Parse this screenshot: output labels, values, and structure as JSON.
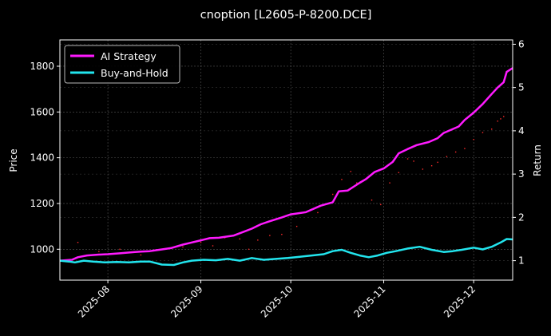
{
  "chart_data": {
    "type": "line",
    "title": "cnoption [L2605-P-8200.DCE]",
    "xlabel": "",
    "ylabel": "Price",
    "y2label": "Return",
    "xlim": [
      "2025-07-16",
      "2025-12-14"
    ],
    "ylim": [
      865,
      1915
    ],
    "y2lim": [
      0.55,
      6.1
    ],
    "x_ticks": [
      "2025-08-01",
      "2025-09-01",
      "2025-10-01",
      "2025-11-01",
      "2025-12-01"
    ],
    "x_tick_labels": [
      "2025-08",
      "2025-09",
      "2025-10",
      "2025-11",
      "2025-12"
    ],
    "y_ticks": [
      1000,
      1200,
      1400,
      1600,
      1800
    ],
    "y2_ticks": [
      1,
      2,
      3,
      4,
      5,
      6
    ],
    "grid": true,
    "legend_position": "top-left",
    "background": "#000000",
    "series": [
      {
        "name": "AI Strategy",
        "axis": "right",
        "color": "#ff1aff",
        "x": [
          "2025-07-16",
          "2025-07-20",
          "2025-07-22",
          "2025-07-25",
          "2025-07-29",
          "2025-08-01",
          "2025-08-05",
          "2025-08-10",
          "2025-08-12",
          "2025-08-15",
          "2025-08-19",
          "2025-08-22",
          "2025-08-26",
          "2025-08-29",
          "2025-09-01",
          "2025-09-04",
          "2025-09-07",
          "2025-09-12",
          "2025-09-15",
          "2025-09-18",
          "2025-09-21",
          "2025-09-24",
          "2025-09-28",
          "2025-10-01",
          "2025-10-06",
          "2025-10-11",
          "2025-10-15",
          "2025-10-17",
          "2025-10-20",
          "2025-10-24",
          "2025-10-26",
          "2025-10-29",
          "2025-11-01",
          "2025-11-04",
          "2025-11-06",
          "2025-11-09",
          "2025-11-12",
          "2025-11-16",
          "2025-11-19",
          "2025-11-21",
          "2025-11-26",
          "2025-11-28",
          "2025-12-01",
          "2025-12-04",
          "2025-12-07",
          "2025-12-09",
          "2025-12-11",
          "2025-12-12",
          "2025-12-14"
        ],
        "y": [
          1.0,
          1.02,
          1.08,
          1.12,
          1.14,
          1.15,
          1.17,
          1.2,
          1.21,
          1.22,
          1.26,
          1.29,
          1.37,
          1.42,
          1.47,
          1.52,
          1.53,
          1.58,
          1.66,
          1.74,
          1.84,
          1.91,
          2.0,
          2.07,
          2.12,
          2.27,
          2.35,
          2.6,
          2.62,
          2.8,
          2.88,
          3.05,
          3.13,
          3.28,
          3.48,
          3.58,
          3.67,
          3.74,
          3.83,
          3.95,
          4.1,
          4.25,
          4.42,
          4.62,
          4.85,
          5.0,
          5.12,
          5.36,
          5.45
        ]
      },
      {
        "name": "Buy-and-Hold",
        "axis": "right",
        "color": "#22e5ee",
        "x": [
          "2025-07-16",
          "2025-07-19",
          "2025-07-21",
          "2025-07-24",
          "2025-07-27",
          "2025-07-31",
          "2025-08-04",
          "2025-08-08",
          "2025-08-12",
          "2025-08-15",
          "2025-08-19",
          "2025-08-23",
          "2025-08-26",
          "2025-08-29",
          "2025-09-02",
          "2025-09-06",
          "2025-09-10",
          "2025-09-14",
          "2025-09-18",
          "2025-09-22",
          "2025-09-26",
          "2025-09-30",
          "2025-10-04",
          "2025-10-08",
          "2025-10-12",
          "2025-10-15",
          "2025-10-18",
          "2025-10-21",
          "2025-10-24",
          "2025-10-27",
          "2025-10-30",
          "2025-11-02",
          "2025-11-05",
          "2025-11-09",
          "2025-11-13",
          "2025-11-17",
          "2025-11-21",
          "2025-11-24",
          "2025-11-27",
          "2025-12-01",
          "2025-12-04",
          "2025-12-07",
          "2025-12-10",
          "2025-12-12",
          "2025-12-14"
        ],
        "y": [
          1.0,
          0.98,
          0.96,
          1.0,
          0.98,
          0.96,
          0.97,
          0.96,
          0.98,
          0.98,
          0.91,
          0.9,
          0.96,
          1.0,
          1.02,
          1.01,
          1.04,
          1.0,
          1.06,
          1.02,
          1.04,
          1.06,
          1.09,
          1.12,
          1.15,
          1.22,
          1.25,
          1.18,
          1.12,
          1.08,
          1.12,
          1.18,
          1.22,
          1.28,
          1.32,
          1.25,
          1.2,
          1.22,
          1.25,
          1.3,
          1.26,
          1.32,
          1.42,
          1.5,
          1.49
        ]
      }
    ],
    "scatter": {
      "axis": "left",
      "color": "#ff2a2a",
      "x": [
        "2025-07-22",
        "2025-07-29",
        "2025-08-05",
        "2025-08-12",
        "2025-08-19",
        "2025-08-26",
        "2025-09-01",
        "2025-09-05",
        "2025-09-09",
        "2025-09-14",
        "2025-09-17",
        "2025-09-20",
        "2025-09-24",
        "2025-09-28",
        "2025-10-03",
        "2025-10-10",
        "2025-10-15",
        "2025-10-18",
        "2025-10-21",
        "2025-10-23",
        "2025-10-26",
        "2025-10-28",
        "2025-10-31",
        "2025-11-03",
        "2025-11-06",
        "2025-11-09",
        "2025-11-11",
        "2025-11-14",
        "2025-11-17",
        "2025-11-19",
        "2025-11-22",
        "2025-11-25",
        "2025-11-28",
        "2025-12-01",
        "2025-12-04",
        "2025-12-07",
        "2025-12-09",
        "2025-12-10",
        "2025-12-11"
      ],
      "y": [
        1030,
        990,
        1000,
        975,
        1000,
        1010,
        1030,
        1015,
        1050,
        1045,
        1000,
        1040,
        1060,
        1065,
        1100,
        1160,
        1240,
        1305,
        1340,
        1290,
        1305,
        1215,
        1195,
        1290,
        1335,
        1395,
        1385,
        1350,
        1365,
        1380,
        1405,
        1425,
        1440,
        1480,
        1510,
        1525,
        1560,
        1570,
        1580
      ]
    }
  }
}
